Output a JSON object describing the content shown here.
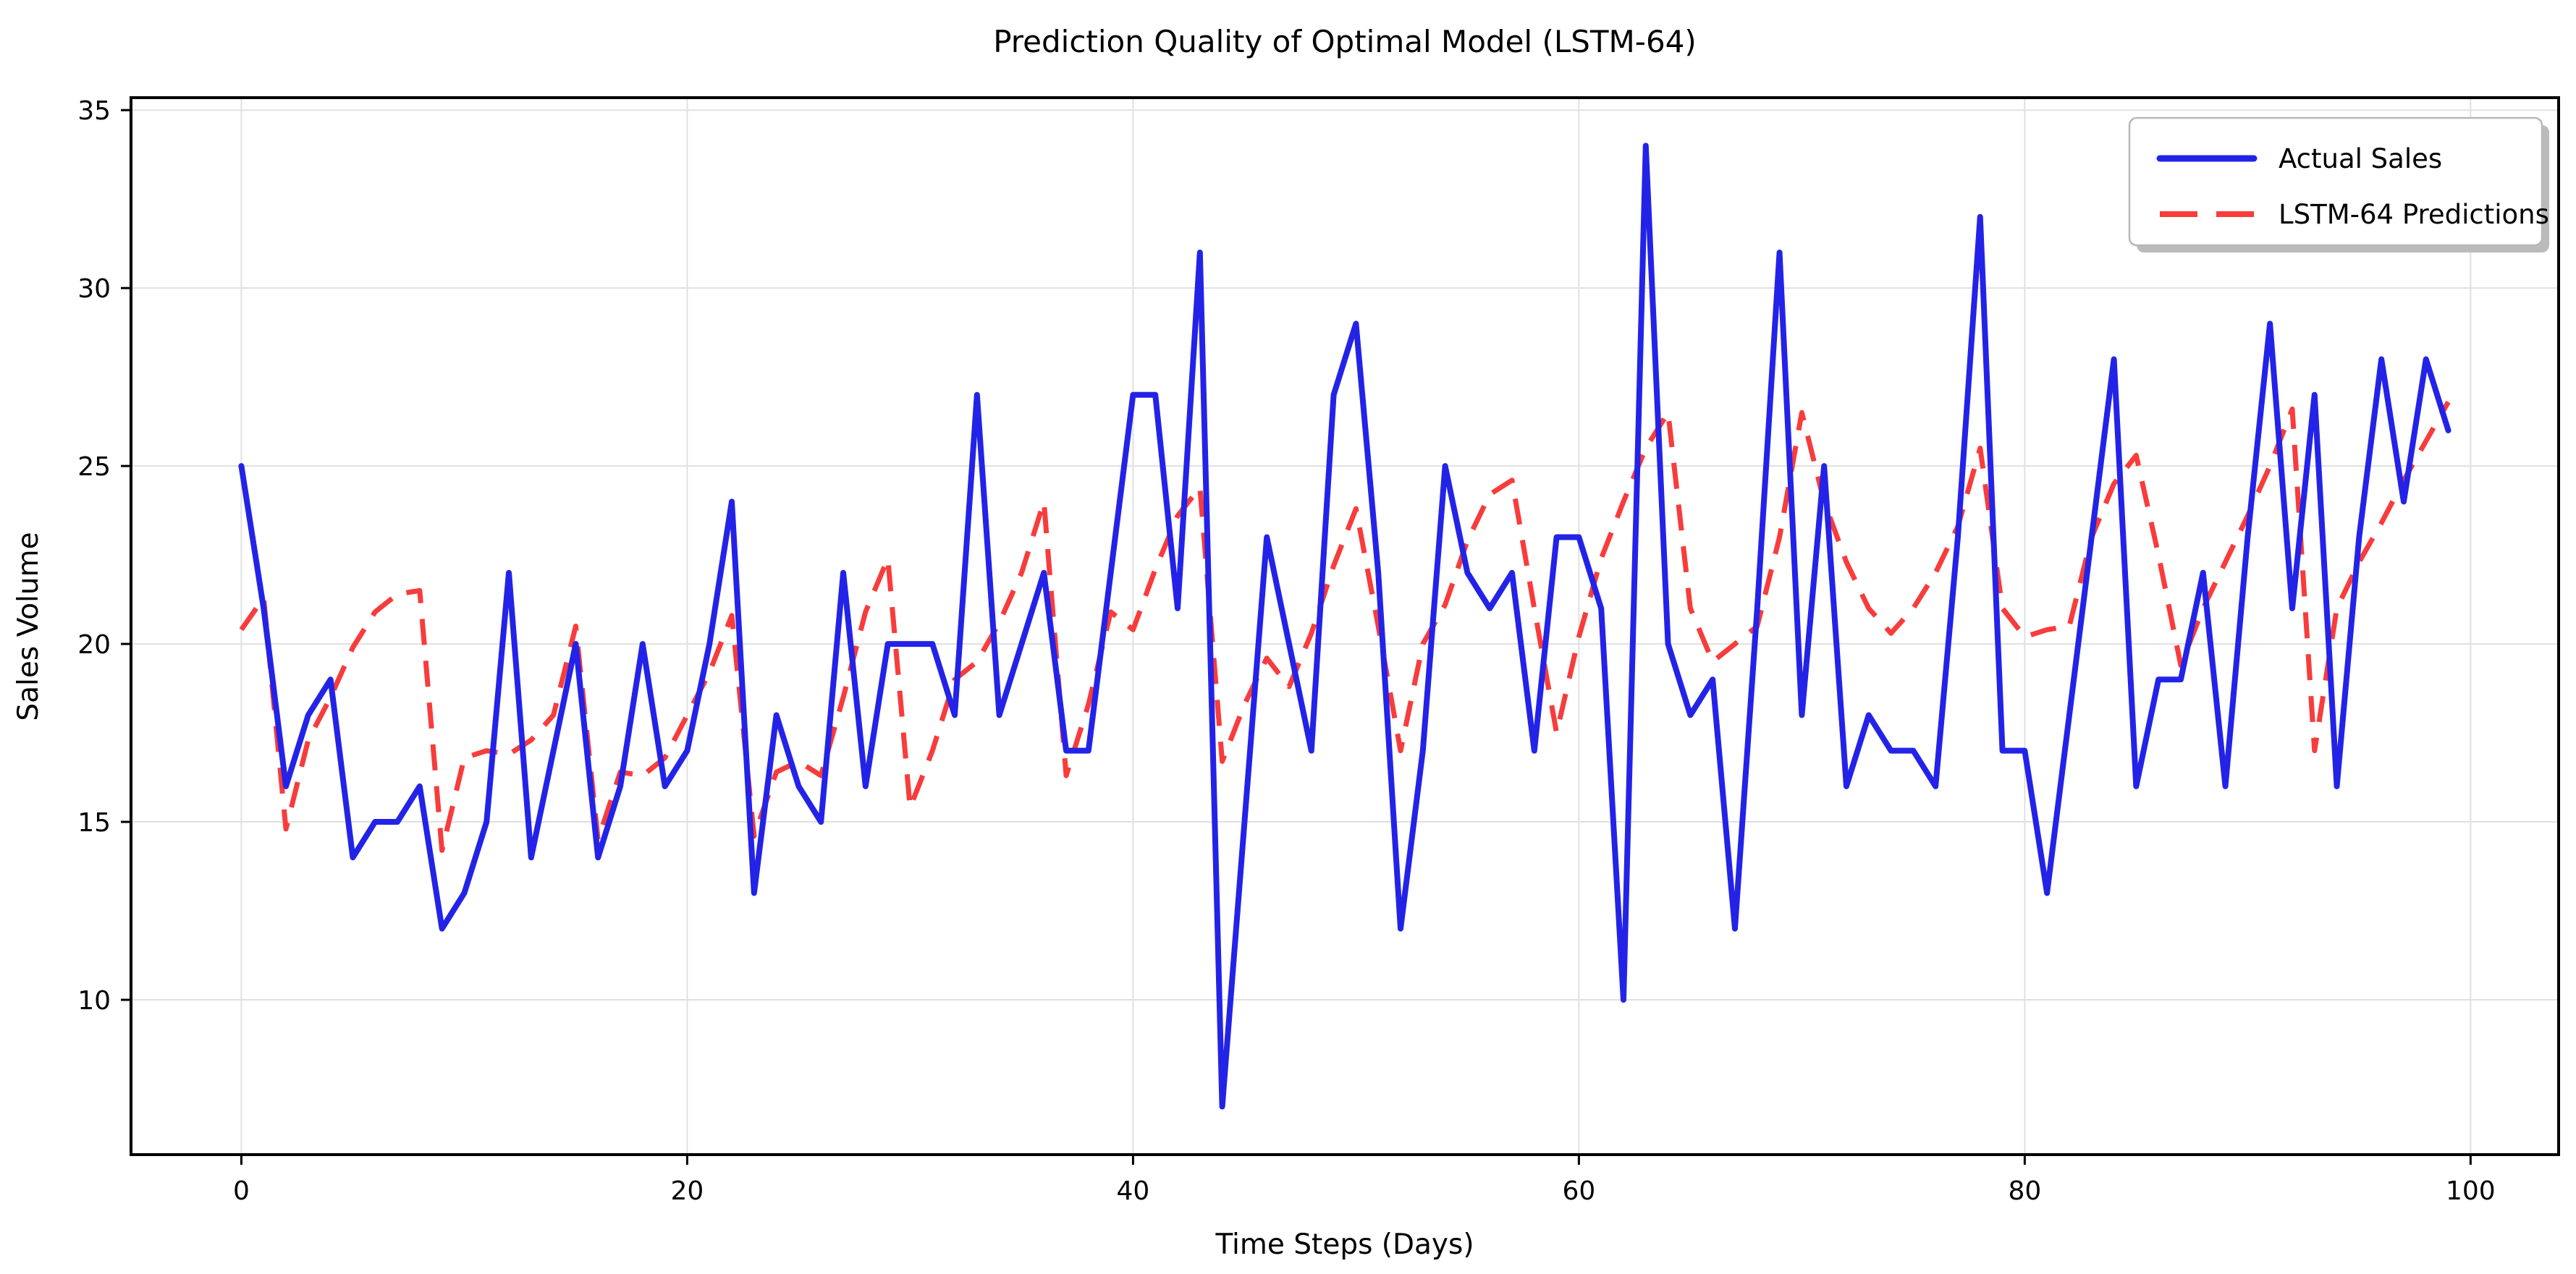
{
  "title": "Prediction Quality of Optimal Model (LSTM-64)",
  "colors": {
    "actual": "#2323e8",
    "predicted": "#f83c3c",
    "grid": "#e0e0e0",
    "background": "#ffffff"
  },
  "legend": {
    "items": [
      {
        "label": "Actual Sales",
        "style": "solid-blue"
      },
      {
        "label": "LSTM-64 Predictions",
        "style": "dashed-red"
      }
    ],
    "position": "upper-right"
  },
  "chart_data": {
    "type": "line",
    "title": "Prediction Quality of Optimal Model (LSTM-64)",
    "xlabel": "Time Steps (Days)",
    "ylabel": "Sales Volume",
    "xlim": [
      -4.95,
      103.95
    ],
    "ylim": [
      5.65,
      35.35
    ],
    "xticks": [
      0,
      20,
      40,
      60,
      80,
      100
    ],
    "yticks": [
      10,
      15,
      20,
      25,
      30,
      35
    ],
    "grid": true,
    "legend_position": "upper right",
    "x": [
      0,
      1,
      2,
      3,
      4,
      5,
      6,
      7,
      8,
      9,
      10,
      11,
      12,
      13,
      14,
      15,
      16,
      17,
      18,
      19,
      20,
      21,
      22,
      23,
      24,
      25,
      26,
      27,
      28,
      29,
      30,
      31,
      32,
      33,
      34,
      35,
      36,
      37,
      38,
      39,
      40,
      41,
      42,
      43,
      44,
      45,
      46,
      47,
      48,
      49,
      50,
      51,
      52,
      53,
      54,
      55,
      56,
      57,
      58,
      59,
      60,
      61,
      62,
      63,
      64,
      65,
      66,
      67,
      68,
      69,
      70,
      71,
      72,
      73,
      74,
      75,
      76,
      77,
      78,
      79,
      80,
      81,
      82,
      83,
      84,
      85,
      86,
      87,
      88,
      89,
      90,
      91,
      92,
      93,
      94,
      95,
      96,
      97,
      98,
      99
    ],
    "series": [
      {
        "name": "Actual Sales",
        "values": [
          25,
          21,
          16,
          18,
          19,
          14,
          15,
          15,
          16,
          12,
          13,
          15,
          22,
          14,
          17,
          20,
          14,
          16,
          20,
          16,
          17,
          20,
          24,
          13,
          18,
          16,
          15,
          22,
          16,
          20,
          20,
          20,
          18,
          27,
          18,
          20,
          22,
          17,
          17,
          22,
          27,
          27,
          21,
          31,
          7,
          15,
          23,
          20,
          17,
          27,
          29,
          22,
          12,
          17,
          25,
          22,
          21,
          22,
          17,
          23,
          23,
          21,
          10,
          34,
          20,
          18,
          19,
          12,
          21,
          31,
          18,
          25,
          16,
          18,
          17,
          17,
          16,
          23,
          32,
          17,
          17,
          13,
          18,
          23,
          28,
          16,
          19,
          19,
          22,
          16,
          23,
          29,
          21,
          27,
          16,
          23,
          28,
          24,
          28,
          26
        ]
      },
      {
        "name": "LSTM-64 Predictions",
        "values": [
          20.4,
          21.3,
          14.8,
          17.3,
          18.5,
          19.9,
          20.9,
          21.4,
          21.5,
          14.2,
          16.8,
          17,
          16.9,
          17.3,
          18,
          20.5,
          14.5,
          16.4,
          16.3,
          16.8,
          18,
          19.2,
          20.8,
          14.6,
          16.4,
          16.7,
          16.3,
          18.5,
          20.9,
          22.4,
          15.4,
          17,
          19,
          19.5,
          20.6,
          22,
          24,
          16.3,
          18.3,
          20.9,
          20.4,
          22.1,
          23.6,
          24.4,
          16.7,
          18.3,
          19.6,
          18.8,
          20.3,
          22.2,
          23.8,
          20.5,
          17,
          20,
          21.1,
          22.9,
          24.2,
          24.6,
          21,
          17.5,
          20.2,
          22.4,
          24,
          25.5,
          26.5,
          21,
          19.5,
          20,
          20.5,
          23,
          26.5,
          24,
          22.3,
          21,
          20.3,
          21,
          22,
          23.3,
          25.5,
          21,
          20.2,
          20.4,
          20.5,
          23,
          24.5,
          25.3,
          22.5,
          19.4,
          21,
          22.3,
          23.6,
          25,
          26.6,
          17,
          21,
          22.3,
          23.4,
          24.6,
          25.7,
          26.8
        ]
      }
    ]
  }
}
